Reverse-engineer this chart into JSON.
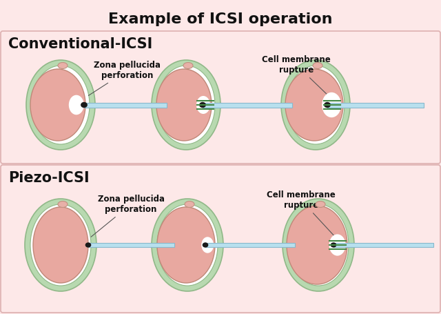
{
  "title": "Example of ICSI operation",
  "title_fontsize": 16,
  "title_fontweight": "bold",
  "bg_color": "#fde8e8",
  "section_label_top": "Conventional-ICSI",
  "section_label_bottom": "Piezo-ICSI",
  "section_label_fontsize": 15,
  "section_label_fontweight": "bold",
  "annotation_zona": "Zona pellucida\nperforation",
  "annotation_membrane": "Cell membrane\nrupture",
  "annotation_fontsize": 8.5,
  "zona_color": "#b8d9b0",
  "zona_edge": "#90b888",
  "zona_inner_color": "#ffffff",
  "cell_color": "#e8a8a0",
  "cell_edge": "#c08878",
  "needle_color": "#b8e0ee",
  "needle_edge": "#88b8cc",
  "needle_tip_color": "#1a1a1a",
  "polar_color": "#e8b0a8",
  "polar_edge": "#c09080",
  "green_line_color": "#448844",
  "sep_color": "#cccccc",
  "panel_edge": "#ddb0b0"
}
